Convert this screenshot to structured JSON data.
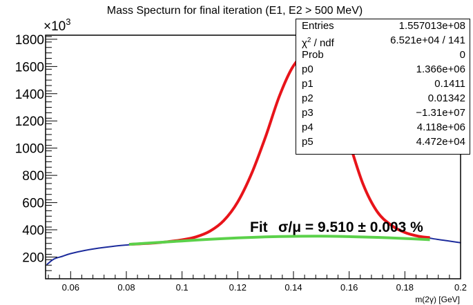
{
  "chart_data": {
    "type": "line",
    "title": "Mass Specturn for final iteration (E1, E2 > 500 MeV)",
    "xlabel": "m(2γ) [GeV]",
    "ylabel": "",
    "y_exponent_label": "×10",
    "y_exponent": "3",
    "xlim": [
      0.051,
      0.2
    ],
    "ylim": [
      40,
      1830
    ],
    "x_ticks": [
      "0.06",
      "0.08",
      "0.1",
      "0.12",
      "0.14",
      "0.16",
      "0.18",
      "0.2"
    ],
    "y_ticks": [
      "200",
      "400",
      "600",
      "800",
      "1000",
      "1200",
      "1400",
      "1600",
      "1800"
    ],
    "histogram": {
      "color": "#1c2b9c",
      "x": [
        0.0515,
        0.054,
        0.057,
        0.06,
        0.065,
        0.07,
        0.075,
        0.08,
        0.085,
        0.09,
        0.095,
        0.1,
        0.105,
        0.11,
        0.115,
        0.12,
        0.125,
        0.13,
        0.135,
        0.14,
        0.145,
        0.15,
        0.155,
        0.16,
        0.165,
        0.17,
        0.175,
        0.18,
        0.185,
        0.19,
        0.195,
        0.2
      ],
      "y": [
        145,
        185,
        205,
        225,
        248,
        265,
        278,
        288,
        296,
        304,
        314,
        328,
        350,
        392,
        470,
        610,
        820,
        1090,
        1390,
        1610,
        1700,
        1620,
        1380,
        1050,
        740,
        540,
        440,
        385,
        355,
        335,
        320,
        305
      ]
    },
    "fit_total": {
      "color": "#e8141a",
      "x": [
        0.081,
        0.09,
        0.095,
        0.1,
        0.105,
        0.11,
        0.115,
        0.12,
        0.125,
        0.13,
        0.135,
        0.14,
        0.145,
        0.15,
        0.155,
        0.16,
        0.165,
        0.17,
        0.175,
        0.18,
        0.185,
        0.189
      ],
      "y": [
        293,
        303,
        313,
        326,
        348,
        390,
        468,
        605,
        815,
        1085,
        1385,
        1605,
        1695,
        1615,
        1375,
        1045,
        735,
        535,
        435,
        380,
        352,
        342
      ]
    },
    "fit_background": {
      "color": "#5bd14a",
      "x": [
        0.081,
        0.09,
        0.1,
        0.11,
        0.12,
        0.13,
        0.14,
        0.15,
        0.16,
        0.17,
        0.18,
        0.189
      ],
      "y": [
        293,
        305,
        318,
        330,
        340,
        348,
        352,
        353,
        350,
        344,
        336,
        327
      ]
    },
    "annotation": {
      "prefix": "Fit",
      "text": "σ/μ = 9.510 ± 0.003 %"
    },
    "stats": [
      {
        "label": "Entries",
        "value": "1.557013e+08"
      },
      {
        "label": "χ",
        "sup": "2",
        "label_rest": " / ndf",
        "value": "6.521e+04 / 141"
      },
      {
        "label": "Prob",
        "value": "0"
      },
      {
        "label": "p0",
        "value": "1.366e+06"
      },
      {
        "label": "p1",
        "value": "0.1411"
      },
      {
        "label": "p2",
        "value": "0.01342"
      },
      {
        "label": "p3",
        "value": "−1.31e+07"
      },
      {
        "label": "p4",
        "value": "4.118e+06"
      },
      {
        "label": "p5",
        "value": "4.472e+04"
      }
    ]
  }
}
